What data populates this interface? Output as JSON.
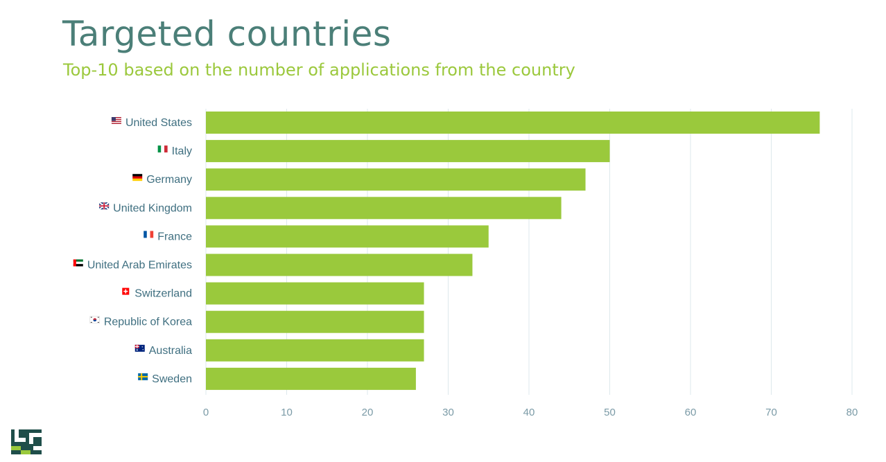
{
  "header": {
    "title": "Targeted countries",
    "subtitle": "Top-10 based on the number of applications from the country"
  },
  "colors": {
    "bar": "#9ac93c",
    "title": "#4b7f78",
    "subtitle": "#9bc83c",
    "label": "#3f6f80",
    "grid": "#dde8ec"
  },
  "chart_data": {
    "type": "bar",
    "orientation": "horizontal",
    "categories": [
      "United States",
      "Italy",
      "Germany",
      "United Kingdom",
      "France",
      "United Arab Emirates",
      "Switzerland",
      "Republic of Korea",
      "Australia",
      "Sweden"
    ],
    "category_icons": [
      "flag-us-icon",
      "flag-it-icon",
      "flag-de-icon",
      "flag-gb-icon",
      "flag-fr-icon",
      "flag-ae-icon",
      "flag-ch-icon",
      "flag-kr-icon",
      "flag-au-icon",
      "flag-se-icon"
    ],
    "values": [
      76,
      50,
      47,
      44,
      35,
      33,
      27,
      27,
      27,
      26
    ],
    "xlim": [
      0,
      80
    ],
    "xticks": [
      "0",
      "10",
      "20",
      "30",
      "40",
      "50",
      "60",
      "70",
      "80"
    ],
    "grid": true,
    "legend": "none"
  }
}
